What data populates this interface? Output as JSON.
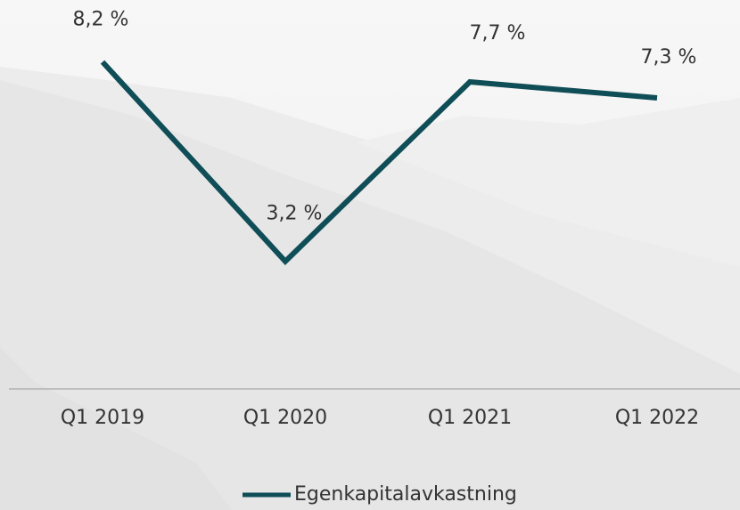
{
  "chart_data": {
    "type": "line",
    "categories": [
      "Q1 2019",
      "Q1 2020",
      "Q1 2021",
      "Q1 2022"
    ],
    "series": [
      {
        "name": "Egenkapitalavkastning",
        "color": "#0f4d57",
        "values": [
          8.2,
          3.2,
          7.7,
          7.3
        ],
        "value_labels": [
          "8,2 %",
          "3,2 %",
          "7,7 %",
          "7,3 %"
        ]
      }
    ]
  }
}
